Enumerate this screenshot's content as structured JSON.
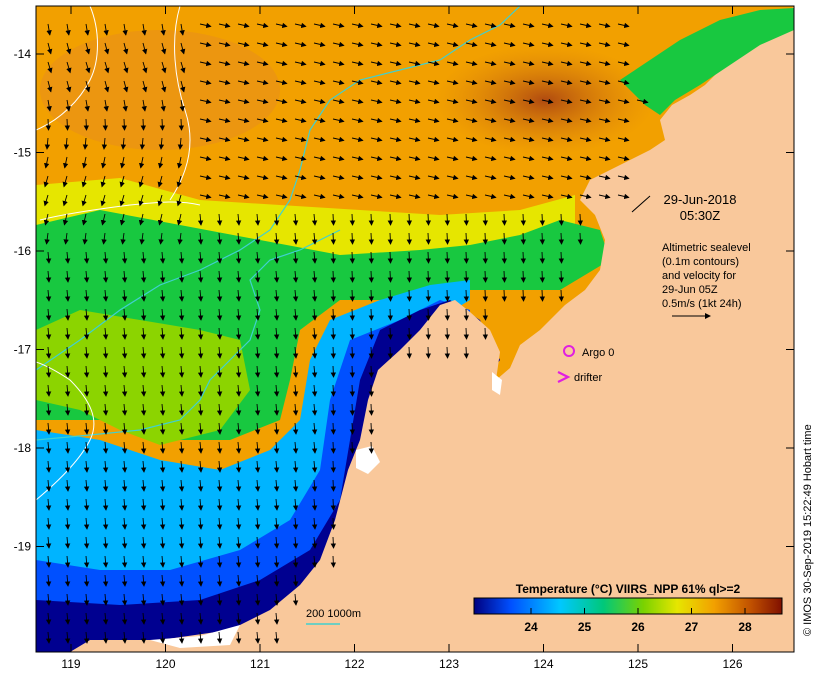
{
  "map": {
    "x_ticks": [
      "119",
      "120",
      "121",
      "122",
      "123",
      "124",
      "125",
      "126"
    ],
    "y_ticks": [
      "-14",
      "-15",
      "-16",
      "-17",
      "-18",
      "-19"
    ]
  },
  "annotations": {
    "date": "29-Jun-2018",
    "time": "05:30Z",
    "legend_lines": [
      "Altimetric sealevel",
      "(0.1m contours)",
      "and velocity for",
      "29-Jun 05Z",
      "0.5m/s (1kt 24h)"
    ],
    "argo_label": "Argo 0",
    "drifter_label": "drifter",
    "scale_label": "200  1000m"
  },
  "colorbar": {
    "title": "Temperature (°C) VIIRS_NPP 61% ql>=2",
    "tick_labels": [
      "24",
      "25",
      "26",
      "27",
      "28"
    ],
    "colors": [
      "#000080",
      "#0050ff",
      "#00c8ff",
      "#00c87a",
      "#7ad200",
      "#e6e600",
      "#f2a000",
      "#c05000",
      "#801000"
    ]
  },
  "credit": "© IMOS 30-Sep-2019 15:22:49 Hobart time",
  "colors": {
    "land": "#f9c89b",
    "arrow": "#000000",
    "contour": "#ffffff",
    "isobath": "#40d0d0",
    "argo": "#e020e0"
  }
}
